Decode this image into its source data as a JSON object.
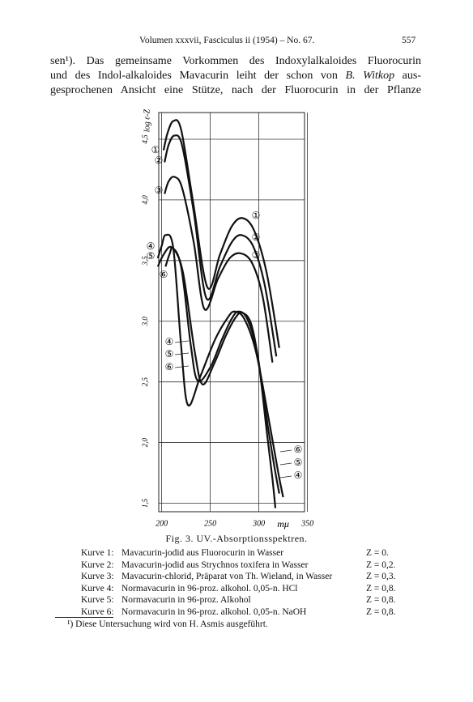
{
  "header": {
    "running_title": "Volumen xxxvii, Fasciculus ii (1954) – No. 67.",
    "page_number": "557"
  },
  "body_lines": [
    [
      "sen¹). Das gemeinsame Vorkommen des Indoxylalkaloides Fluorocurin"
    ],
    [
      "und des Indol-alkaloides Mavacurin leiht der schon von ",
      "B. Witkop",
      " aus-"
    ],
    [
      "gesprochenen Ansicht eine Stütze, nach der Fluorocurin in der Pflanze"
    ]
  ],
  "chart_data": {
    "type": "line",
    "y_label": "log ε-Z",
    "x_unit": "mμ",
    "xlim": [
      197,
      347
    ],
    "ylim": [
      1.43,
      4.72
    ],
    "xticks": [
      200,
      250,
      300,
      350
    ],
    "yticks": [
      {
        "value": 1.5,
        "label": "1,5"
      },
      {
        "value": 2.0,
        "label": "2,0"
      },
      {
        "value": 2.5,
        "label": "2,5"
      },
      {
        "value": 3.0,
        "label": "3,0"
      },
      {
        "value": 3.5,
        "label": "3,5"
      },
      {
        "value": 4.0,
        "label": "4,0"
      },
      {
        "value": 4.5,
        "label": "4,5"
      }
    ],
    "grid": true,
    "series": [
      {
        "name": "①",
        "color": "#111111",
        "x": [
          202,
          206,
          212,
          220,
          232,
          247,
          260,
          272,
          283,
          295,
          308,
          321
        ],
        "values": [
          4.41,
          4.55,
          4.65,
          4.58,
          4.0,
          3.28,
          3.55,
          3.78,
          3.85,
          3.75,
          3.4,
          2.78
        ]
      },
      {
        "name": "②",
        "color": "#111111",
        "x": [
          203,
          207,
          213,
          221,
          233,
          246,
          260,
          272,
          282,
          294,
          306,
          318
        ],
        "values": [
          4.31,
          4.45,
          4.53,
          4.45,
          3.9,
          3.19,
          3.45,
          3.65,
          3.71,
          3.62,
          3.3,
          2.71
        ]
      },
      {
        "name": "③",
        "color": "#111111",
        "x": [
          203,
          207,
          213,
          221,
          233,
          244,
          258,
          270,
          281,
          293,
          304,
          314
        ],
        "values": [
          4.05,
          4.15,
          4.19,
          4.1,
          3.65,
          3.1,
          3.35,
          3.52,
          3.56,
          3.48,
          3.2,
          2.66
        ]
      },
      {
        "name": "④",
        "color": "#111111",
        "x": [
          196,
          200,
          204,
          212,
          220,
          227,
          240,
          255,
          268,
          275,
          285,
          297,
          310,
          320,
          325
        ],
        "values": [
          3.52,
          3.62,
          3.71,
          3.6,
          2.8,
          2.31,
          2.55,
          2.85,
          3.03,
          3.08,
          3.02,
          2.75,
          2.2,
          1.75,
          1.55
        ]
      },
      {
        "name": "⑤",
        "color": "#111111",
        "x": [
          196,
          202,
          210,
          220,
          230,
          237,
          250,
          262,
          272,
          279,
          288,
          298,
          308,
          316,
          321
        ],
        "values": [
          3.45,
          3.55,
          3.61,
          3.45,
          2.8,
          2.51,
          2.62,
          2.85,
          3.02,
          3.08,
          3.02,
          2.75,
          2.2,
          1.8,
          1.58
        ]
      },
      {
        "name": "⑥",
        "color": "#111111",
        "x": [
          204,
          208,
          212,
          222,
          234,
          242,
          254,
          266,
          276,
          283,
          292,
          300,
          308,
          314,
          317
        ],
        "values": [
          3.45,
          3.55,
          3.6,
          3.4,
          2.75,
          2.48,
          2.65,
          2.88,
          3.03,
          3.07,
          2.98,
          2.65,
          2.1,
          1.7,
          1.46
        ]
      }
    ]
  },
  "caption": "Fig. 3. UV.-Absorptionsspektren.",
  "legend_table": {
    "rows": [
      [
        "Kurve 1:",
        "Mavacurin-jodid aus Fluorocurin in Wasser",
        "Z = 0."
      ],
      [
        "Kurve 2:",
        "Mavacurin-jodid aus Strychnos toxifera in Wasser",
        "Z = 0,2."
      ],
      [
        "Kurve 3:",
        "Mavacurin-chlorid, Präparat von Th. Wieland, in Wasser",
        "Z = 0,3."
      ],
      [
        "Kurve 4:",
        "Normavacurin in 96-proz. alkohol. 0,05-n. HCl",
        "Z = 0,8."
      ],
      [
        "Kurve 5:",
        "Normavacurin in 96-proz. Alkohol",
        "Z = 0,8."
      ],
      [
        "Kurve 6:",
        "Normavacurin in 96-proz. alkohol. 0,05-n. NaOH",
        "Z = 0,8."
      ]
    ]
  },
  "footnote": "¹) Diese Untersuchung wird von H. Asmis ausgeführt."
}
